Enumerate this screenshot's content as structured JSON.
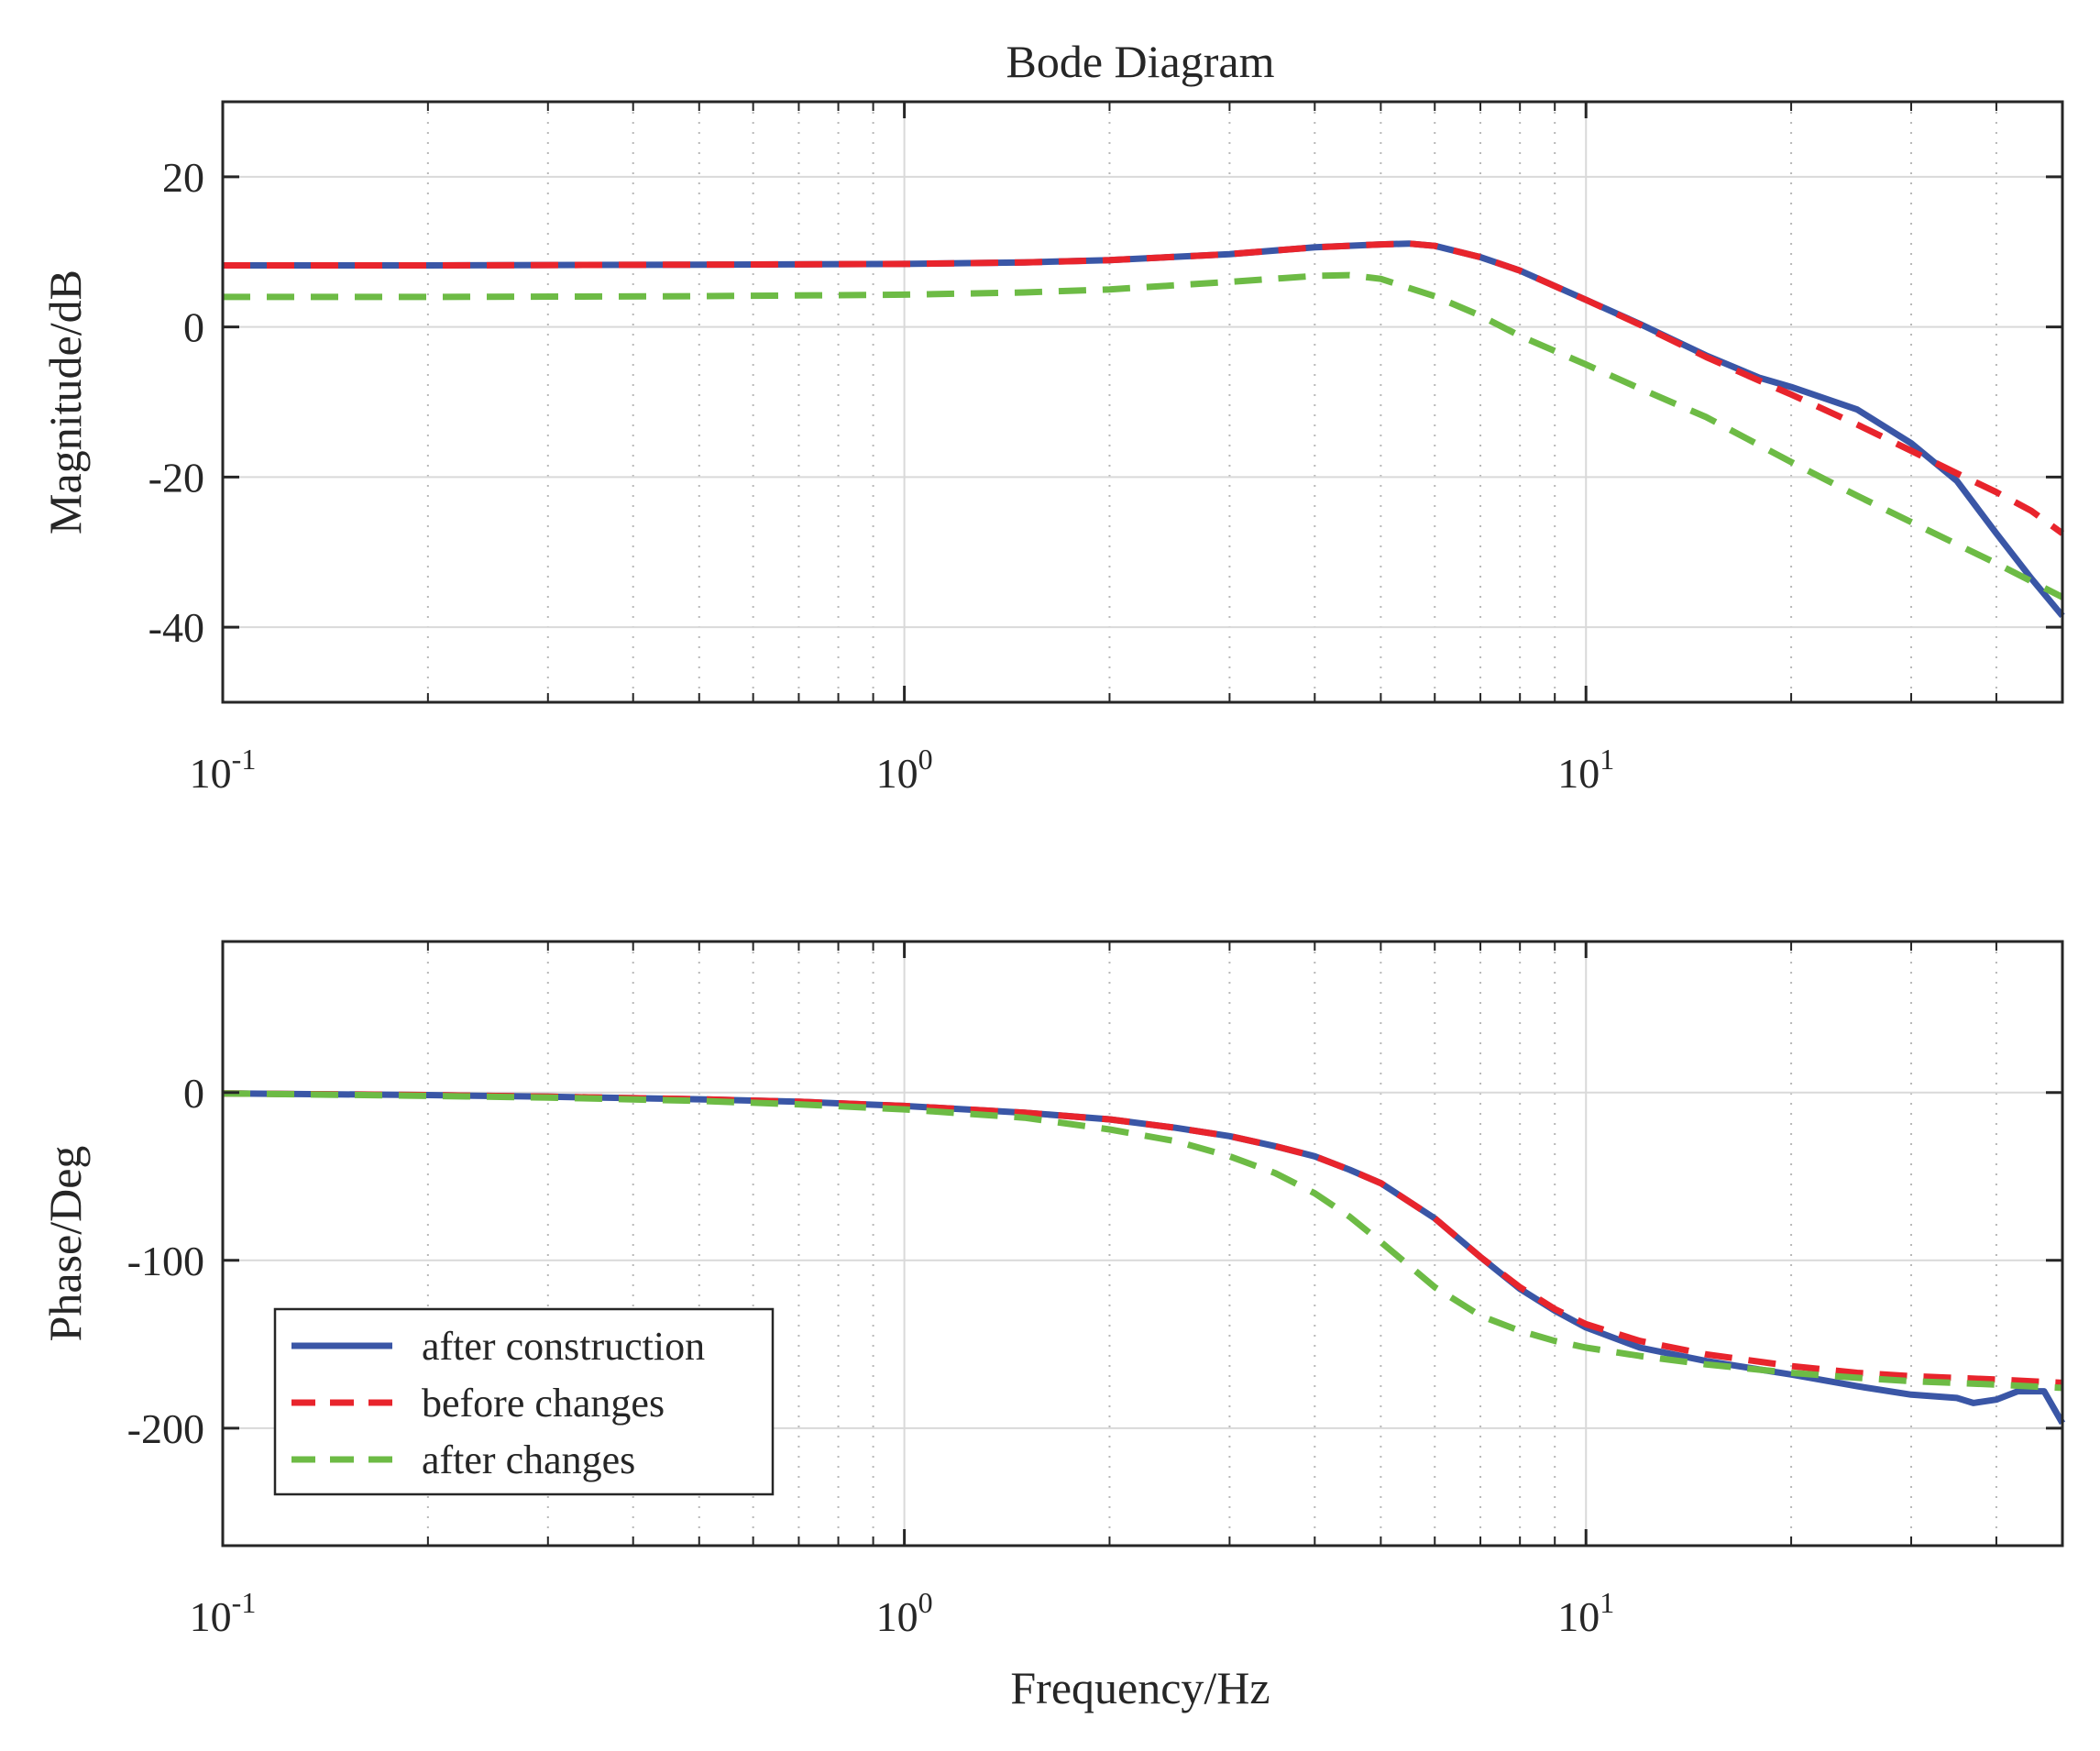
{
  "figure_title": "Bode Diagram",
  "colors": {
    "after_construction": "#3a56a6",
    "before_changes": "#e8242c",
    "after_changes": "#6dbb45",
    "axis": "#262626",
    "grid": "#d9d9d9"
  },
  "chart_data": [
    {
      "type": "line",
      "title": "Bode Diagram",
      "xlabel": "",
      "ylabel": "Magnitude/dB",
      "xscale": "log",
      "xlim": [
        0.1,
        50
      ],
      "ylim": [
        -50,
        30
      ],
      "yticks": [
        20,
        0,
        -20,
        -40
      ],
      "ytick_labels": [
        "20",
        "0",
        "-20",
        "-40"
      ],
      "xtick_decades": [
        {
          "base": "10",
          "exp": "-1",
          "value": 0.1
        },
        {
          "base": "10",
          "exp": "0",
          "value": 1
        },
        {
          "base": "10",
          "exp": "1",
          "value": 10
        }
      ],
      "grid": true,
      "series": [
        {
          "name": "after construction",
          "style": "solid",
          "x": [
            0.1,
            0.2,
            0.5,
            1,
            1.5,
            2,
            3,
            4,
            5,
            5.5,
            6,
            7,
            8,
            10,
            12,
            15,
            18,
            20,
            25,
            30,
            35,
            40,
            45,
            50
          ],
          "y": [
            8.2,
            8.2,
            8.3,
            8.4,
            8.6,
            8.9,
            9.7,
            10.6,
            11.0,
            11.1,
            10.8,
            9.3,
            7.5,
            3.6,
            0.4,
            -3.8,
            -6.8,
            -8.0,
            -11.0,
            -15.5,
            -20.5,
            -27.5,
            -33.5,
            -38.5
          ]
        },
        {
          "name": "before changes",
          "style": "dashed",
          "x": [
            0.1,
            0.2,
            0.5,
            1,
            1.5,
            2,
            3,
            4,
            5,
            5.5,
            6,
            7,
            8,
            10,
            12,
            15,
            18,
            20,
            25,
            30,
            35,
            40,
            45,
            50
          ],
          "y": [
            8.2,
            8.2,
            8.3,
            8.4,
            8.6,
            8.9,
            9.7,
            10.6,
            11.0,
            11.1,
            10.8,
            9.3,
            7.5,
            3.6,
            0.3,
            -4.0,
            -7.2,
            -9.0,
            -13.0,
            -16.5,
            -19.5,
            -22.0,
            -24.5,
            -27.5
          ]
        },
        {
          "name": "after changes",
          "style": "dashed",
          "x": [
            0.1,
            0.2,
            0.5,
            1,
            1.5,
            2,
            3,
            4,
            4.5,
            5,
            6,
            7,
            8,
            10,
            12,
            15,
            20,
            25,
            30,
            40,
            50
          ],
          "y": [
            4.0,
            4.0,
            4.1,
            4.3,
            4.6,
            5.0,
            6.0,
            6.8,
            6.9,
            6.4,
            4.1,
            1.5,
            -1.2,
            -5.0,
            -8.2,
            -12.0,
            -18.0,
            -22.5,
            -26.0,
            -31.5,
            -36.0
          ]
        }
      ]
    },
    {
      "type": "line",
      "title": "",
      "xlabel": "Frequency/Hz",
      "ylabel": "Phase/Deg",
      "xscale": "log",
      "xlim": [
        0.1,
        50
      ],
      "ylim": [
        -270,
        90
      ],
      "yticks": [
        0,
        -100,
        -200
      ],
      "ytick_labels": [
        "0",
        "-100",
        "-200"
      ],
      "xtick_decades": [
        {
          "base": "10",
          "exp": "-1",
          "value": 0.1
        },
        {
          "base": "10",
          "exp": "0",
          "value": 1
        },
        {
          "base": "10",
          "exp": "1",
          "value": 10
        }
      ],
      "grid": true,
      "legend": {
        "position": "lower-left",
        "entries": [
          "after construction",
          "before changes",
          "after changes"
        ]
      },
      "series": [
        {
          "name": "after construction",
          "style": "solid",
          "x": [
            0.1,
            0.2,
            0.3,
            0.5,
            0.7,
            1,
            1.5,
            2,
            2.5,
            3,
            3.5,
            4,
            4.5,
            5,
            6,
            7,
            8,
            9,
            10,
            12,
            15,
            20,
            25,
            30,
            35,
            37,
            40,
            43,
            47,
            50
          ],
          "y": [
            -0.5,
            -1.5,
            -2.5,
            -4,
            -5.5,
            -8,
            -12,
            -16,
            -21,
            -26,
            -32,
            -38,
            -46,
            -54,
            -75,
            -98,
            -117,
            -130,
            -140,
            -152,
            -160,
            -168,
            -175,
            -180,
            -182,
            -185,
            -183,
            -178,
            -178,
            -197
          ]
        },
        {
          "name": "before changes",
          "style": "dashed",
          "x": [
            0.1,
            0.2,
            0.3,
            0.5,
            0.7,
            1,
            1.5,
            2,
            2.5,
            3,
            3.5,
            4,
            4.5,
            5,
            6,
            7,
            8,
            9,
            10,
            12,
            15,
            20,
            25,
            30,
            40,
            50
          ],
          "y": [
            -0.5,
            -1.5,
            -2.5,
            -4,
            -5.5,
            -8,
            -12,
            -16,
            -21,
            -26,
            -32,
            -38,
            -46,
            -54,
            -75,
            -98,
            -116,
            -129,
            -138,
            -148,
            -156,
            -163,
            -167,
            -169,
            -171,
            -173
          ]
        },
        {
          "name": "after changes",
          "style": "dashed",
          "x": [
            0.1,
            0.2,
            0.3,
            0.5,
            0.7,
            1,
            1.5,
            2,
            2.5,
            3,
            3.5,
            4,
            4.5,
            5,
            6,
            7,
            8,
            9,
            10,
            12,
            15,
            20,
            25,
            30,
            40,
            50
          ],
          "y": [
            -0.5,
            -2,
            -3,
            -5,
            -7,
            -10,
            -15,
            -22,
            -29,
            -38,
            -48,
            -60,
            -74,
            -89,
            -116,
            -133,
            -142,
            -148,
            -152,
            -157,
            -162,
            -167,
            -170,
            -172,
            -174,
            -176
          ]
        }
      ]
    }
  ]
}
